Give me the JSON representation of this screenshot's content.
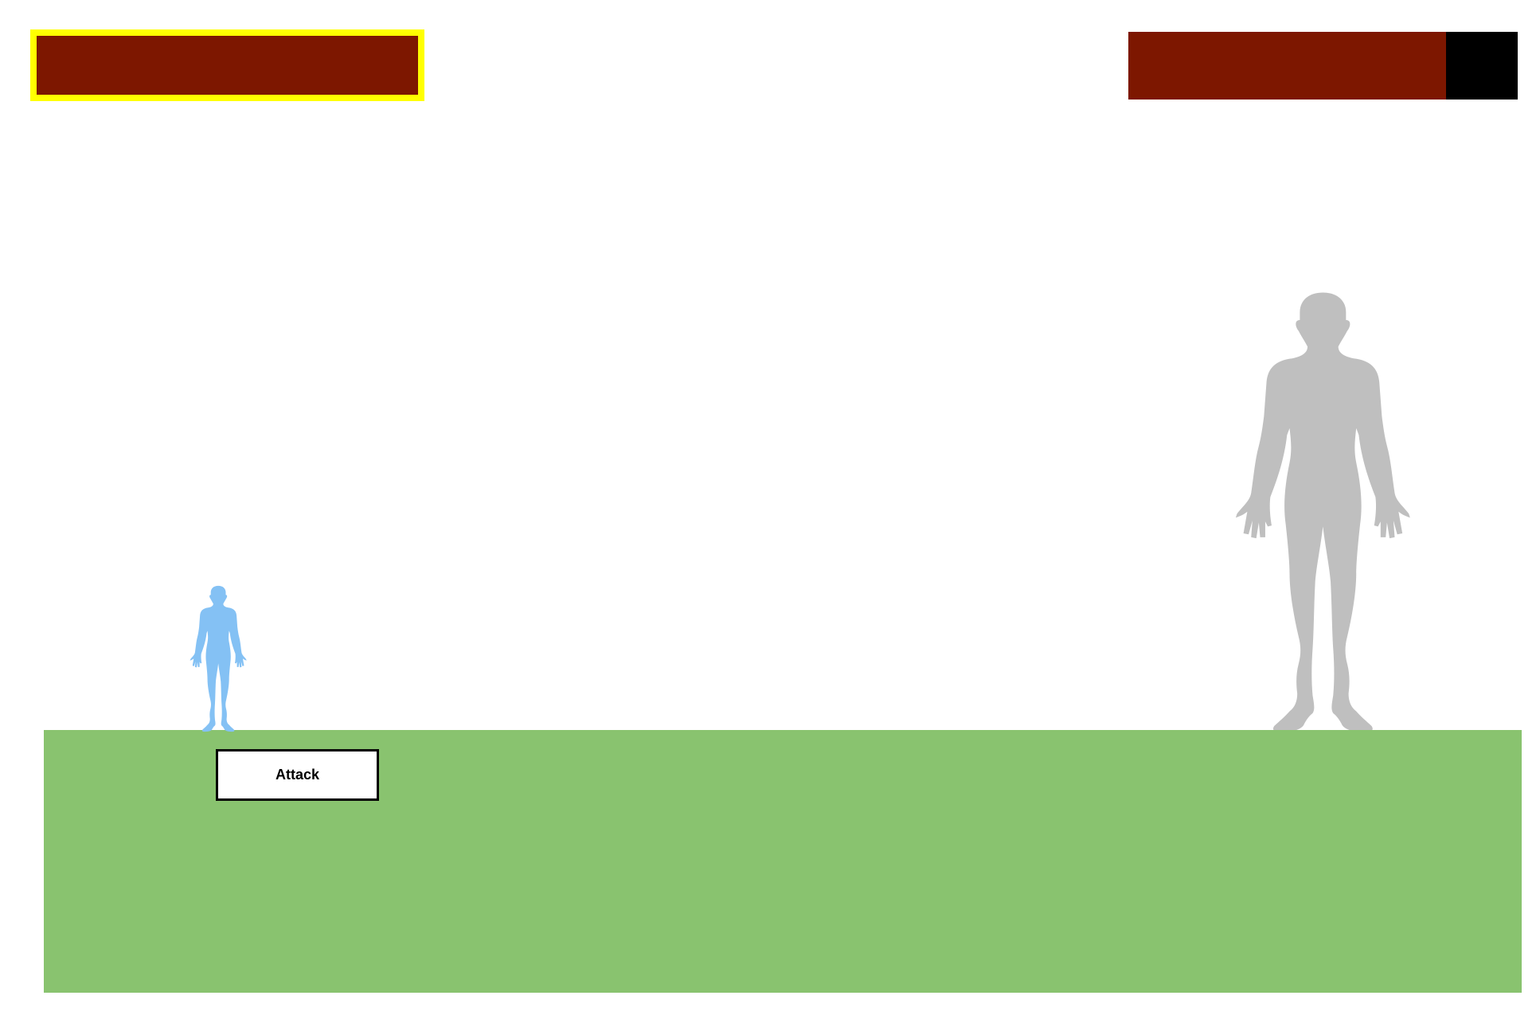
{
  "player": {
    "health_fraction": 1.0,
    "selected": true,
    "health_color": "#7d1700",
    "health_empty_color": "#000000",
    "highlight_color": "#ffff00",
    "figure_color": "#84c1f4",
    "figure_icon": "human-silhouette-icon"
  },
  "enemy": {
    "health_fraction": 0.815,
    "health_color": "#7d1700",
    "health_empty_color": "#000000",
    "figure_color": "#bfbfbf",
    "figure_icon": "human-silhouette-icon"
  },
  "ground": {
    "color": "#89c36f"
  },
  "controls": {
    "attack_label": "Attack"
  }
}
